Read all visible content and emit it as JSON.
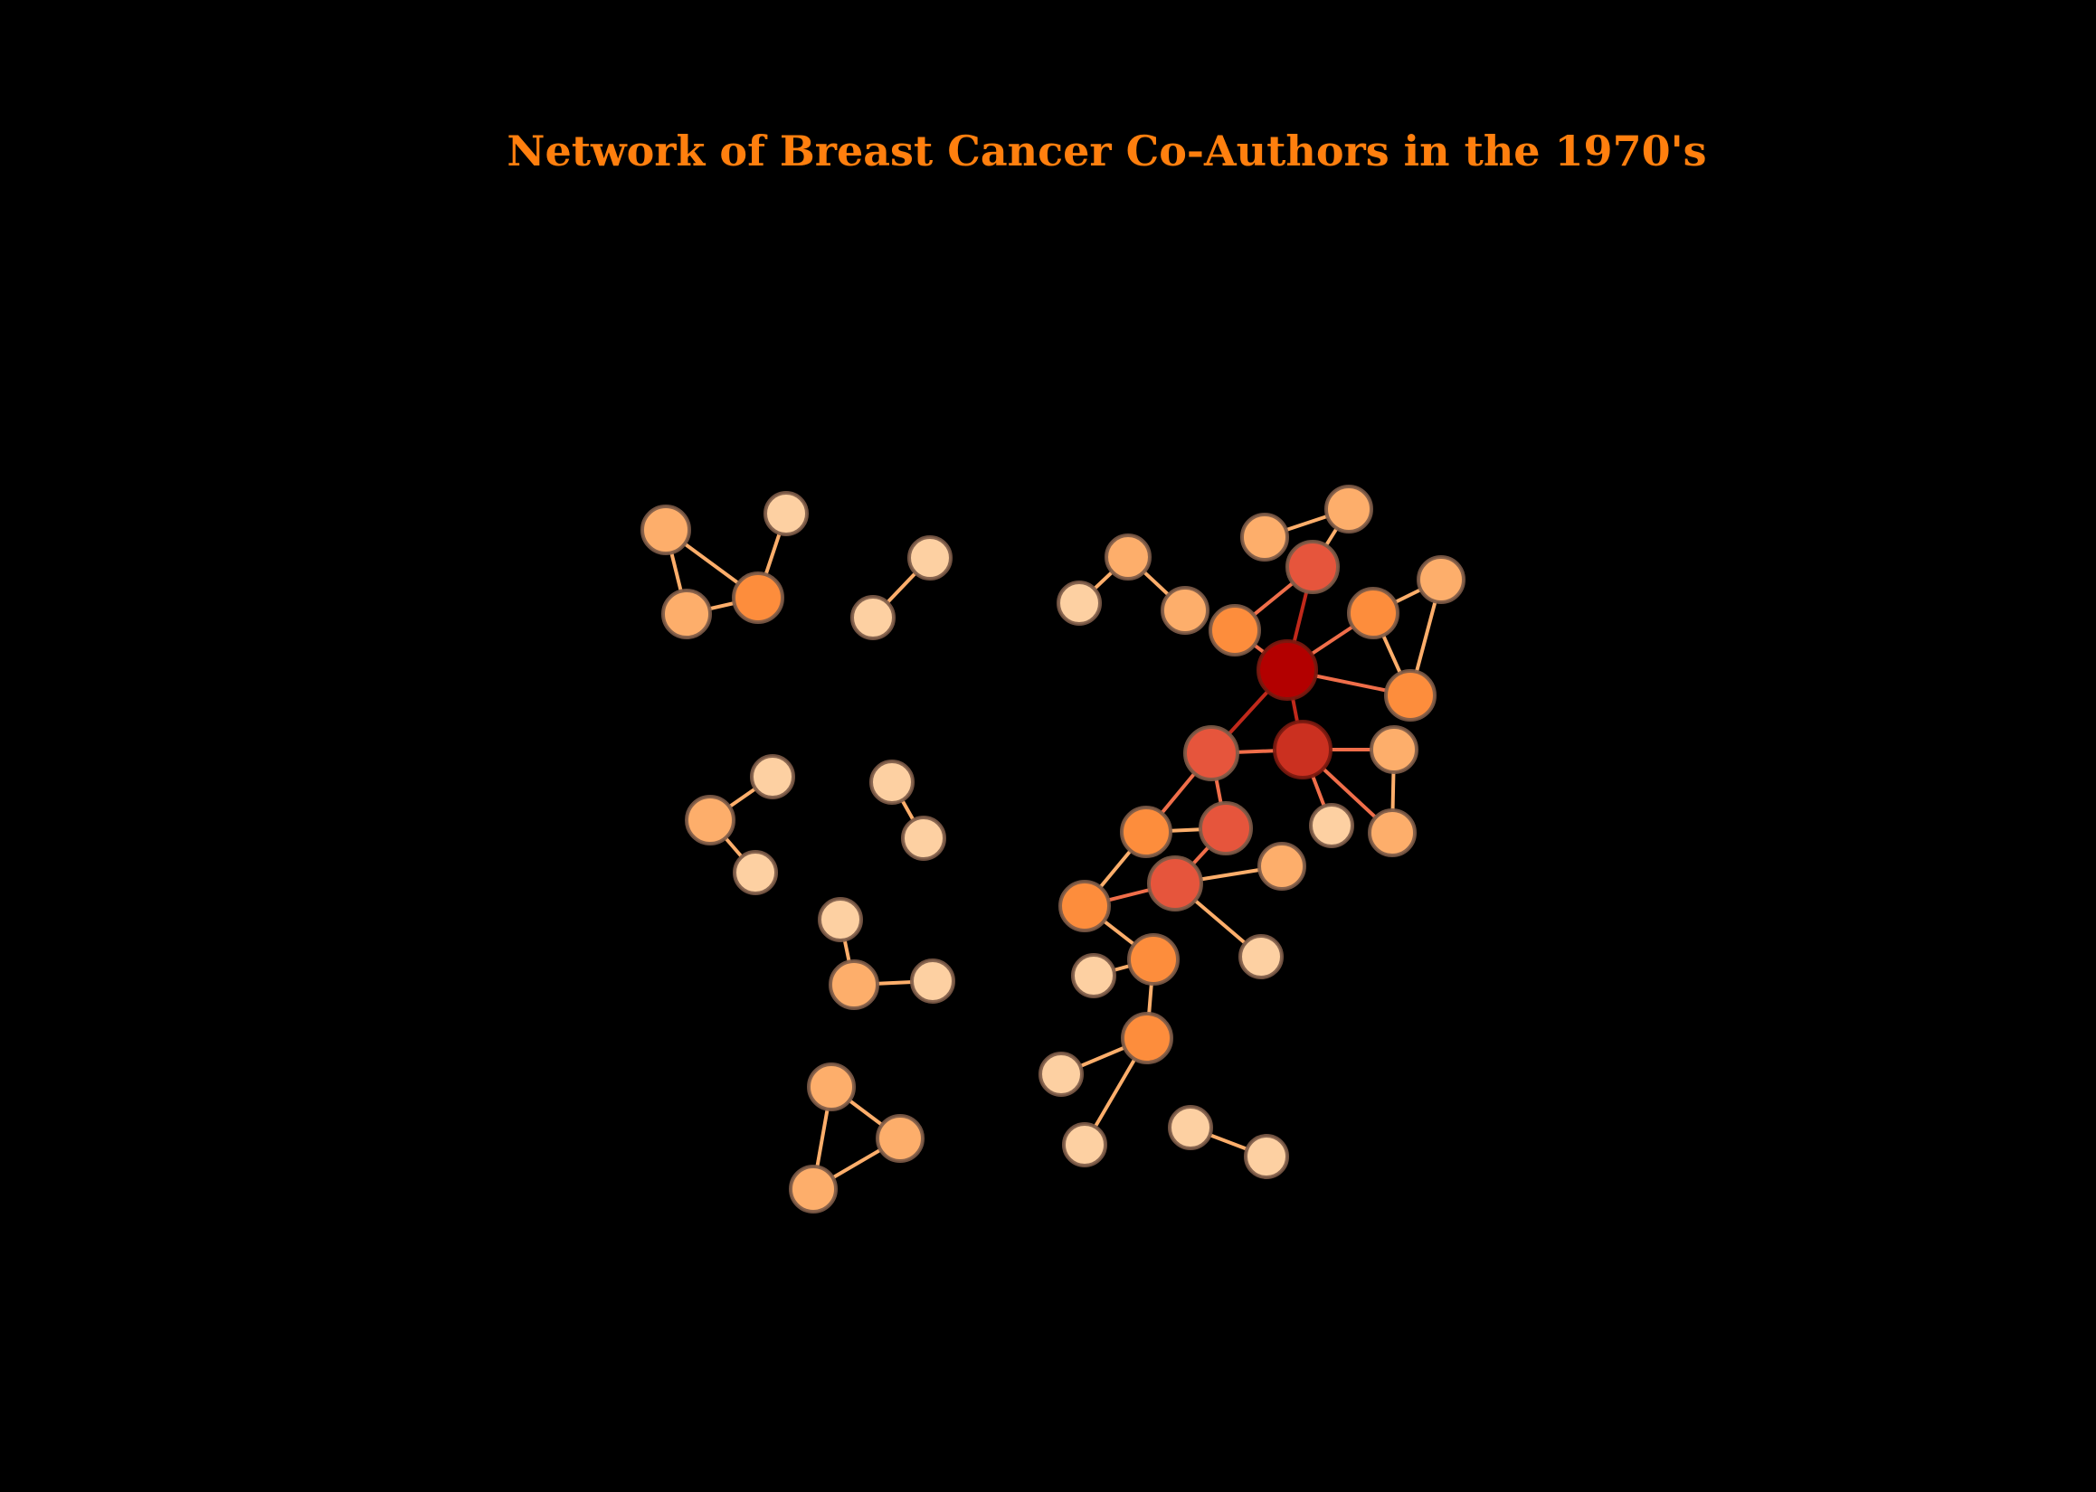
{
  "title": "Network of Breast Cancer Co-Authors in the 1970's",
  "colors": {
    "background": "#000000",
    "title": "#ff7f0e",
    "degree_1": "#fdd0a2",
    "degree_2": "#fdae6b",
    "degree_3": "#fd8d3c",
    "degree_4": "#e6553c",
    "degree_5": "#cb3020",
    "degree_6": "#b30000",
    "edge_light": "#fdae6b",
    "edge_mid": "#f06e4a",
    "edge_dark": "#c0291b"
  },
  "network": {
    "node_count": 48,
    "edge_count": 56,
    "components": 10
  }
}
